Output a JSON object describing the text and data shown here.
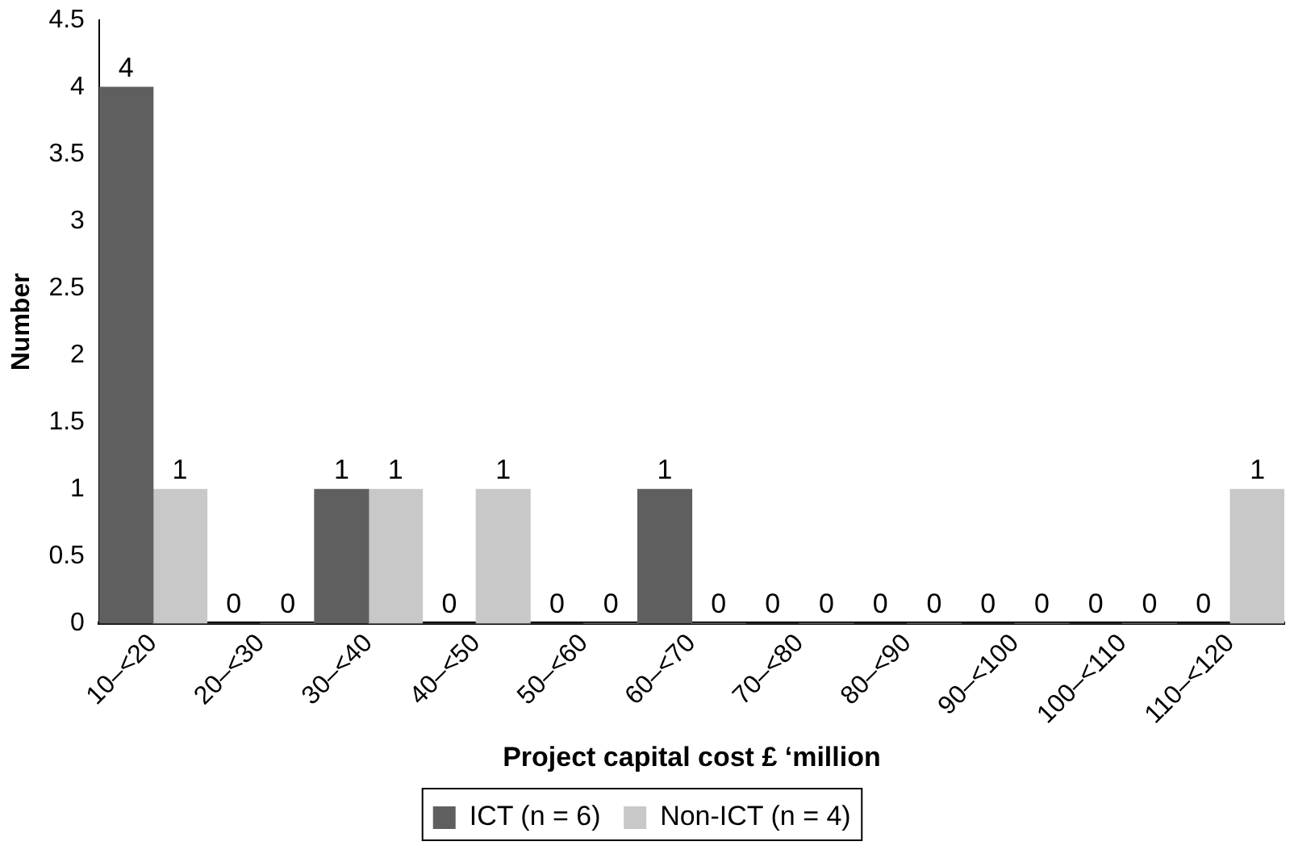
{
  "chart_data": {
    "type": "bar",
    "xlabel": "Project capital cost £ ‘million",
    "ylabel": "Number",
    "categories": [
      "10–<20",
      "20–<30",
      "30–<40",
      "40–<50",
      "50–<60",
      "60–<70",
      "70–<80",
      "80–<90",
      "90–<100",
      "100–<110",
      "110–<120"
    ],
    "series": [
      {
        "name": "ICT (n = 6)",
        "color": "#5f5f5f",
        "values": [
          4,
          0,
          1,
          0,
          0,
          1,
          0,
          0,
          0,
          0,
          0
        ]
      },
      {
        "name": "Non-ICT (n = 4)",
        "color": "#c8c8c8",
        "values": [
          1,
          0,
          1,
          1,
          0,
          0,
          0,
          0,
          0,
          0,
          1
        ]
      }
    ],
    "ylim": [
      0,
      4.5
    ],
    "yticks": [
      0,
      0.5,
      1,
      1.5,
      2,
      2.5,
      3,
      3.5,
      4,
      4.5
    ],
    "grid": false,
    "legend": "bottom",
    "data_labels": true
  }
}
